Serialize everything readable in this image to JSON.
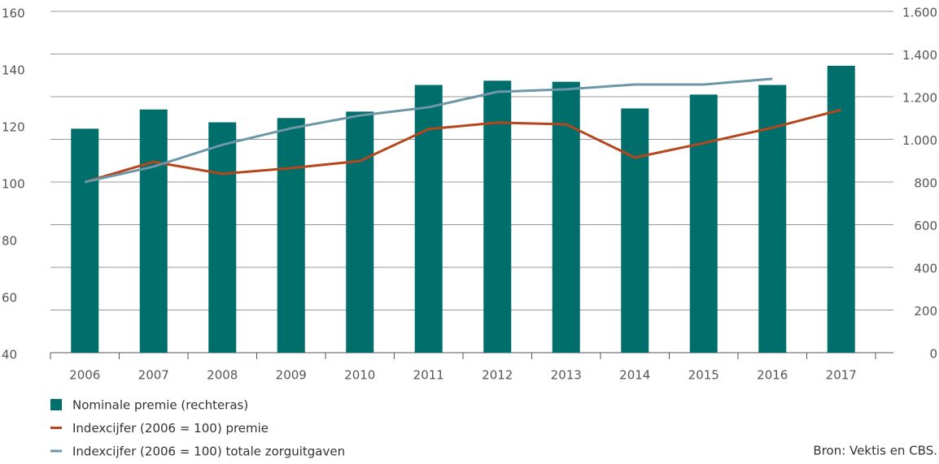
{
  "chart_data": {
    "type": "bar",
    "categories": [
      "2006",
      "2007",
      "2008",
      "2009",
      "2010",
      "2011",
      "2012",
      "2013",
      "2014",
      "2015",
      "2016",
      "2017"
    ],
    "series": [
      {
        "name": "Nominale premie (rechteras)",
        "type": "bar",
        "axis": "y2",
        "color": "#006e6a",
        "values": [
          1050,
          1140,
          1080,
          1100,
          1130,
          1255,
          1275,
          1270,
          1145,
          1210,
          1255,
          1345
        ]
      },
      {
        "name": "Indexcijfer (2006 = 100) premie",
        "type": "line",
        "axis": "y",
        "color": "#b5461e",
        "values": [
          100,
          107.1,
          102.9,
          104.9,
          107.4,
          118.6,
          120.9,
          120.3,
          108.6,
          113.7,
          119.1,
          125.4
        ]
      },
      {
        "name": "Indexcijfer (2006 = 100) totale zorguitgaven",
        "type": "line",
        "axis": "y",
        "color": "#6d97a8",
        "values": [
          100,
          105.4,
          113.1,
          118.9,
          123.4,
          126.3,
          131.7,
          132.6,
          134.3,
          134.3,
          136.3,
          null
        ]
      }
    ],
    "ylim": [
      40,
      160
    ],
    "yticks": [
      40,
      60,
      80,
      100,
      120,
      140,
      160
    ],
    "y2lim": [
      0,
      1600
    ],
    "y2ticks": [
      0,
      200,
      400,
      600,
      800,
      {
        "value": 1000,
        "label": "1.000"
      },
      {
        "value": 1200,
        "label": "1.200"
      },
      {
        "value": 1400,
        "label": "1.400"
      },
      {
        "value": 1600,
        "label": "1.600"
      }
    ],
    "grid": true,
    "source": "Bron: Vektis en CBS."
  }
}
